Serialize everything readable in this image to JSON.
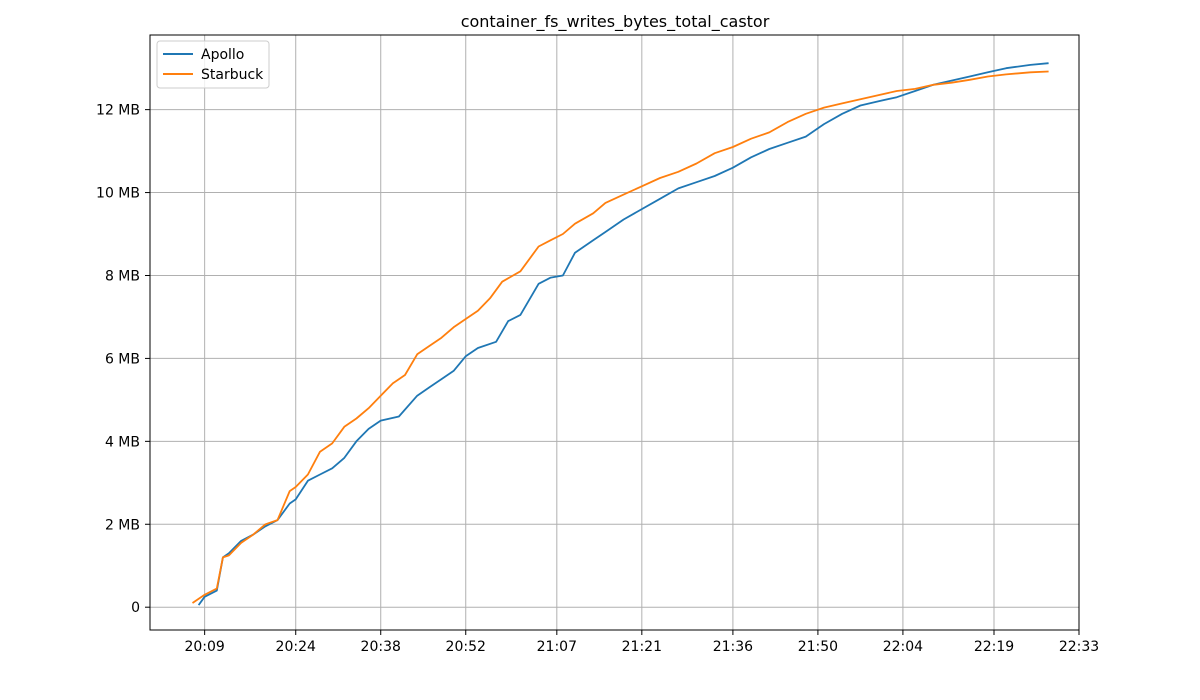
{
  "chart_data": {
    "type": "line",
    "title": "container_fs_writes_bytes_total_castor",
    "xlabel": "",
    "ylabel": "",
    "x_ticks": [
      "20:09",
      "20:24",
      "20:38",
      "20:52",
      "21:07",
      "21:21",
      "21:36",
      "21:50",
      "22:04",
      "22:19",
      "22:33"
    ],
    "y_ticks": [
      "0",
      "2 MB",
      "4 MB",
      "6 MB",
      "8 MB",
      "10 MB",
      "12 MB"
    ],
    "ylim_mb": [
      -0.55,
      13.8
    ],
    "xlim": [
      "20:00",
      "22:33"
    ],
    "grid": true,
    "legend_position": "upper-left",
    "series": [
      {
        "name": "Apollo",
        "color": "#1f77b4",
        "x": [
          "20:08",
          "20:09",
          "20:11",
          "20:12",
          "20:13",
          "20:15",
          "20:17",
          "20:19",
          "20:21",
          "20:23",
          "20:24",
          "20:26",
          "20:28",
          "20:30",
          "20:32",
          "20:34",
          "20:36",
          "20:38",
          "20:41",
          "20:44",
          "20:46",
          "20:48",
          "20:50",
          "20:52",
          "20:54",
          "20:57",
          "20:59",
          "21:01",
          "21:04",
          "21:06",
          "21:08",
          "21:10",
          "21:13",
          "21:15",
          "21:18",
          "21:21",
          "21:24",
          "21:27",
          "21:30",
          "21:33",
          "21:36",
          "21:39",
          "21:42",
          "21:45",
          "21:48",
          "21:51",
          "21:54",
          "21:57",
          "22:00",
          "22:03",
          "22:06",
          "22:09",
          "22:12",
          "22:15",
          "22:18",
          "22:21",
          "22:25",
          "22:28"
        ],
        "y": [
          0.05,
          0.25,
          0.4,
          1.2,
          1.3,
          1.6,
          1.75,
          1.95,
          2.1,
          2.5,
          2.6,
          3.05,
          3.2,
          3.35,
          3.6,
          4.0,
          4.3,
          4.5,
          4.6,
          5.1,
          5.3,
          5.5,
          5.7,
          6.05,
          6.25,
          6.4,
          6.9,
          7.05,
          7.8,
          7.95,
          8.0,
          8.55,
          8.85,
          9.05,
          9.35,
          9.6,
          9.85,
          10.1,
          10.25,
          10.4,
          10.6,
          10.85,
          11.05,
          11.2,
          11.35,
          11.65,
          11.9,
          12.1,
          12.2,
          12.3,
          12.45,
          12.6,
          12.7,
          12.8,
          12.9,
          13.0,
          13.08,
          13.12
        ]
      },
      {
        "name": "Starbuck",
        "color": "#ff7f0e",
        "x": [
          "20:07",
          "20:09",
          "20:11",
          "20:12",
          "20:13",
          "20:15",
          "20:17",
          "20:19",
          "20:21",
          "20:23",
          "20:24",
          "20:26",
          "20:28",
          "20:30",
          "20:32",
          "20:34",
          "20:36",
          "20:38",
          "20:40",
          "20:42",
          "20:44",
          "20:46",
          "20:48",
          "20:50",
          "20:52",
          "20:54",
          "20:56",
          "20:58",
          "21:01",
          "21:04",
          "21:06",
          "21:08",
          "21:10",
          "21:13",
          "21:15",
          "21:18",
          "21:21",
          "21:24",
          "21:27",
          "21:30",
          "21:33",
          "21:36",
          "21:39",
          "21:42",
          "21:45",
          "21:48",
          "21:51",
          "21:54",
          "21:57",
          "22:00",
          "22:03",
          "22:06",
          "22:09",
          "22:12",
          "22:15",
          "22:18",
          "22:21",
          "22:25",
          "22:28"
        ],
        "y": [
          0.1,
          0.3,
          0.45,
          1.2,
          1.25,
          1.55,
          1.75,
          2.0,
          2.1,
          2.8,
          2.9,
          3.2,
          3.75,
          3.95,
          4.35,
          4.55,
          4.8,
          5.1,
          5.4,
          5.6,
          6.1,
          6.3,
          6.5,
          6.75,
          6.95,
          7.15,
          7.45,
          7.85,
          8.1,
          8.7,
          8.85,
          9.0,
          9.25,
          9.5,
          9.75,
          9.95,
          10.15,
          10.35,
          10.5,
          10.7,
          10.95,
          11.1,
          11.3,
          11.45,
          11.7,
          11.9,
          12.05,
          12.15,
          12.25,
          12.35,
          12.45,
          12.5,
          12.6,
          12.65,
          12.72,
          12.8,
          12.85,
          12.9,
          12.92
        ]
      }
    ]
  }
}
